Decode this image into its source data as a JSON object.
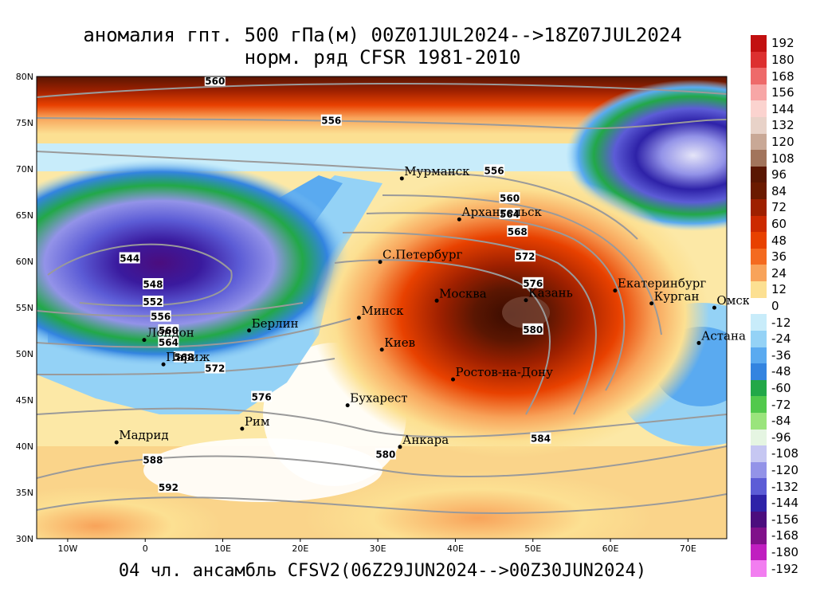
{
  "title": {
    "line1": "аномалия гпт. 500 гПа(м) 00Z01JUL2024-->18Z07JUL2024",
    "line2": "норм. ряд CFSR 1981-2010"
  },
  "footer": "04 чл. ансамбль CFSV2(06Z29JUN2024-->00Z30JUN2024)",
  "map": {
    "lat_labels": [
      "80N",
      "75N",
      "70N",
      "65N",
      "60N",
      "55N",
      "50N",
      "45N",
      "40N",
      "35N",
      "30N"
    ],
    "lon_labels": [
      "10W",
      "0",
      "10E",
      "20E",
      "30E",
      "40E",
      "50E",
      "60E",
      "70E"
    ],
    "cities": [
      {
        "name": "Мурманск",
        "lon": 33.1,
        "lat": 68.97
      },
      {
        "name": "Архангельск",
        "lon": 40.5,
        "lat": 64.55
      },
      {
        "name": "С.Петербург",
        "lon": 30.3,
        "lat": 59.94
      },
      {
        "name": "Москва",
        "lon": 37.6,
        "lat": 55.75
      },
      {
        "name": "Казань",
        "lon": 49.1,
        "lat": 55.8
      },
      {
        "name": "Екатеринбург",
        "lon": 60.6,
        "lat": 56.84
      },
      {
        "name": "Курган",
        "lon": 65.3,
        "lat": 55.45
      },
      {
        "name": "Омск",
        "lon": 73.4,
        "lat": 54.99
      },
      {
        "name": "Астана",
        "lon": 71.4,
        "lat": 51.17
      },
      {
        "name": "Минск",
        "lon": 27.56,
        "lat": 53.9
      },
      {
        "name": "Киев",
        "lon": 30.52,
        "lat": 50.45
      },
      {
        "name": "Берлин",
        "lon": 13.4,
        "lat": 52.52
      },
      {
        "name": "Лондон",
        "lon": -0.13,
        "lat": 51.5
      },
      {
        "name": "Париж",
        "lon": 2.35,
        "lat": 48.86
      },
      {
        "name": "Ростов-на-Дону",
        "lon": 39.7,
        "lat": 47.23
      },
      {
        "name": "Бухарест",
        "lon": 26.1,
        "lat": 44.43
      },
      {
        "name": "Рим",
        "lon": 12.5,
        "lat": 41.9
      },
      {
        "name": "Мадрид",
        "lon": -3.7,
        "lat": 40.42
      },
      {
        "name": "Анкара",
        "lon": 32.86,
        "lat": 39.93
      }
    ],
    "contour_labels": [
      {
        "text": "560",
        "lon": 9,
        "lat": 79.5
      },
      {
        "text": "556",
        "lon": 24,
        "lat": 75.2
      },
      {
        "text": "556",
        "lon": 45,
        "lat": 69.8
      },
      {
        "text": "560",
        "lon": 47,
        "lat": 66.8
      },
      {
        "text": "564",
        "lon": 47,
        "lat": 65.1
      },
      {
        "text": "568",
        "lon": 48,
        "lat": 63.2
      },
      {
        "text": "572",
        "lon": 49,
        "lat": 60.5
      },
      {
        "text": "576",
        "lon": 50,
        "lat": 57.6
      },
      {
        "text": "580",
        "lon": 50,
        "lat": 52.6
      },
      {
        "text": "584",
        "lon": 51,
        "lat": 40.8
      },
      {
        "text": "544",
        "lon": -2,
        "lat": 60.3
      },
      {
        "text": "548",
        "lon": 1,
        "lat": 57.5
      },
      {
        "text": "552",
        "lon": 1,
        "lat": 55.6
      },
      {
        "text": "556",
        "lon": 2,
        "lat": 54
      },
      {
        "text": "560",
        "lon": 3,
        "lat": 52.5
      },
      {
        "text": "564",
        "lon": 3,
        "lat": 51.2
      },
      {
        "text": "568",
        "lon": 5,
        "lat": 49.6
      },
      {
        "text": "572",
        "lon": 9,
        "lat": 48.4
      },
      {
        "text": "576",
        "lon": 15,
        "lat": 45.3
      },
      {
        "text": "580",
        "lon": 31,
        "lat": 39.1
      },
      {
        "text": "588",
        "lon": 1,
        "lat": 38.5
      },
      {
        "text": "592",
        "lon": 3,
        "lat": 35.5
      }
    ]
  },
  "legend": {
    "labels": [
      "192",
      "180",
      "168",
      "156",
      "144",
      "132",
      "120",
      "108",
      "96",
      "84",
      "72",
      "60",
      "48",
      "36",
      "24",
      "12",
      "0",
      "-12",
      "-24",
      "-36",
      "-48",
      "-60",
      "-72",
      "-84",
      "-96",
      "-108",
      "-120",
      "-132",
      "-144",
      "-156",
      "-168",
      "-180",
      "-192"
    ],
    "colors": [
      "#c21010",
      "#dd3030",
      "#ee6a6a",
      "#f7a6a6",
      "#fbd3cf",
      "#e8d2c8",
      "#c9a896",
      "#a2745c",
      "#5a1602",
      "#6b1a00",
      "#9e2000",
      "#cc2a00",
      "#e84100",
      "#f46a1f",
      "#f8a35a",
      "#fce092",
      "#ffffff",
      "#c8ecfa",
      "#94d2f6",
      "#5aaaf0",
      "#3384e0",
      "#22a848",
      "#52c94c",
      "#9ae47c",
      "#e5f5e2",
      "#c6c7f2",
      "#9393e8",
      "#5c5cd6",
      "#2e22a8",
      "#4b0d7e",
      "#80108a",
      "#c01ec0",
      "#f27ef0"
    ]
  }
}
